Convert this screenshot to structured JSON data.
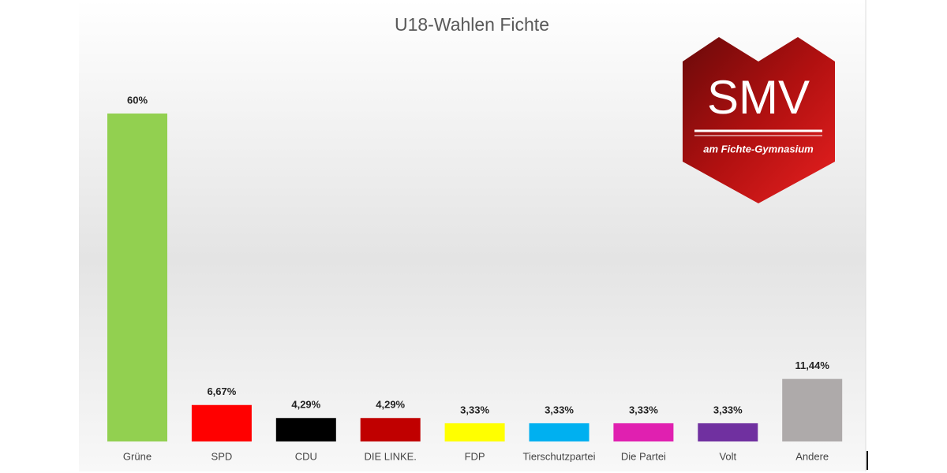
{
  "chart_data": {
    "type": "bar",
    "title": "U18-Wahlen Fichte",
    "categories": [
      "Grüne",
      "SPD",
      "CDU",
      "DIE LINKE.",
      "FDP",
      "Tierschutzpartei",
      "Die Partei",
      "Volt",
      "Andere"
    ],
    "values": [
      60,
      6.67,
      4.29,
      4.29,
      3.33,
      3.33,
      3.33,
      3.33,
      11.44
    ],
    "value_labels": [
      "60%",
      "6,67%",
      "4,29%",
      "4,29%",
      "3,33%",
      "3,33%",
      "3,33%",
      "3,33%",
      "11,44%"
    ],
    "colors": [
      "#92d050",
      "#ff0000",
      "#000000",
      "#c00000",
      "#ffff00",
      "#00b0f0",
      "#e020b0",
      "#7030a0",
      "#aeaaaa"
    ]
  },
  "logo": {
    "title": "SMV",
    "subtitle": "am Fichte-Gymnasium"
  }
}
